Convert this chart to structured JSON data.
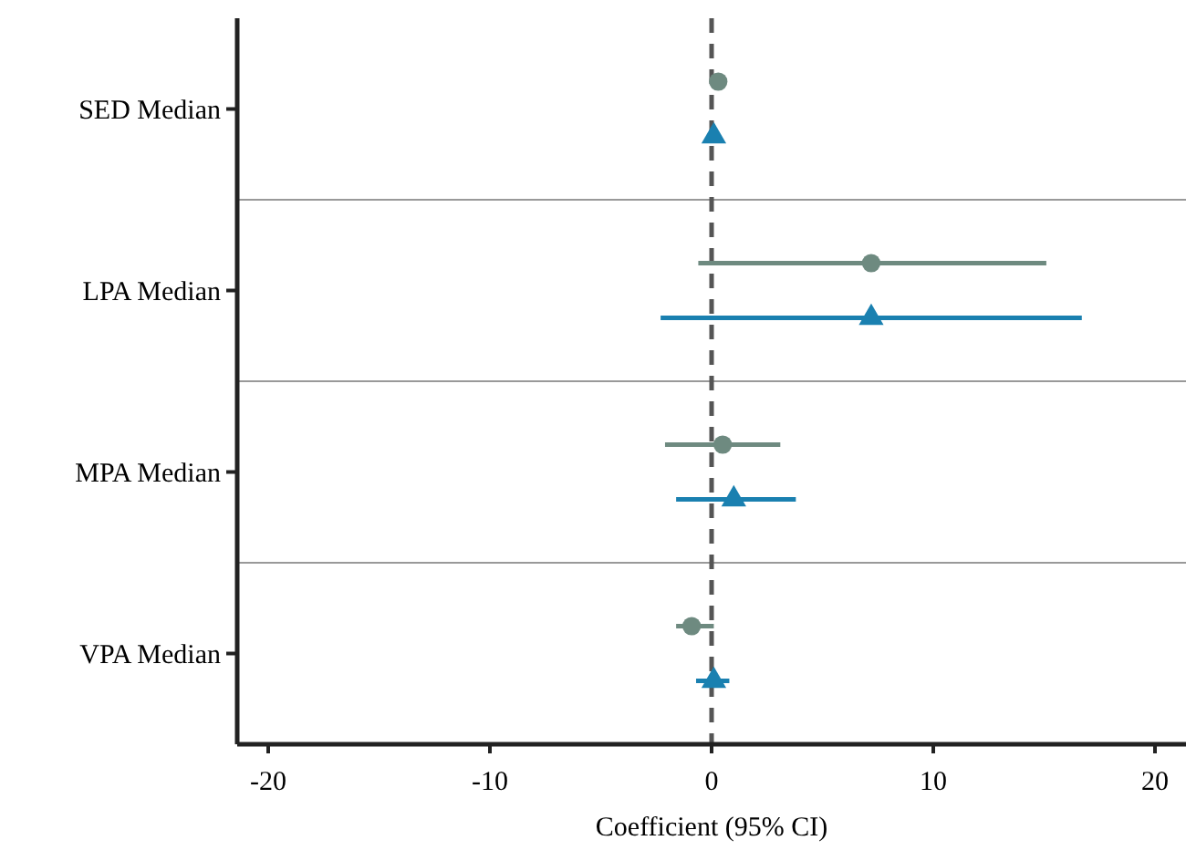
{
  "chart_data": {
    "type": "scatter",
    "orientation": "horizontal",
    "xlabel": "Coefficient (95% CI)",
    "categories": [
      "SED Median",
      "LPA Median",
      "MPA Median",
      "VPA Median"
    ],
    "xlim": [
      -21.4,
      21.4
    ],
    "xticks": [
      -20,
      -10,
      0,
      10,
      20
    ],
    "grid": "y",
    "ref_lines": [
      {
        "axis": "x",
        "value": 0,
        "color": "#555555",
        "line_style": "dashed"
      }
    ],
    "series": [
      {
        "color": "#6e8a80",
        "marker": "circle",
        "values": [
          0.3,
          7.2,
          0.5,
          -0.9
        ],
        "errors": [
          [
            0,
            0.6
          ],
          [
            -0.6,
            15.1
          ],
          [
            -2.1,
            3.1
          ],
          [
            -1.6,
            0.1
          ]
        ]
      },
      {
        "color": "#1a80b0",
        "marker": "triangle",
        "values": [
          0.1,
          7.2,
          1.0,
          0.1
        ],
        "errors": [
          [
            -0.1,
            0.3
          ],
          [
            -2.3,
            16.7
          ],
          [
            -1.6,
            3.8
          ],
          [
            -0.7,
            0.8
          ]
        ]
      }
    ]
  }
}
